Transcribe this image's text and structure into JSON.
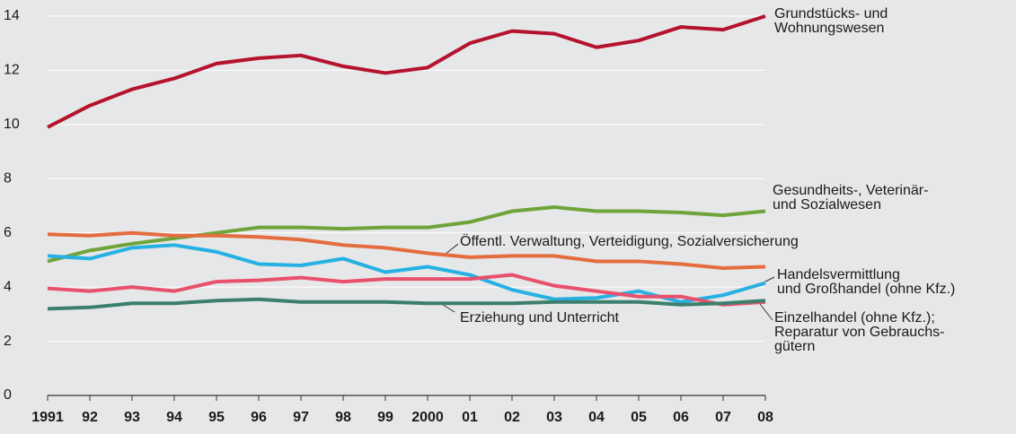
{
  "chart_data": {
    "type": "line",
    "categories": [
      "1991",
      "92",
      "93",
      "94",
      "95",
      "96",
      "97",
      "98",
      "99",
      "2000",
      "01",
      "02",
      "03",
      "04",
      "05",
      "06",
      "07",
      "08"
    ],
    "ylim": [
      0,
      14
    ],
    "yticks": [
      0,
      2,
      4,
      6,
      8,
      10,
      12,
      14
    ],
    "grid": true,
    "series": [
      {
        "name": "Grundstücks- und\nWohnungswesen",
        "color": "#b5122e",
        "values": [
          9.9,
          10.7,
          11.3,
          11.7,
          12.25,
          12.45,
          12.55,
          12.15,
          11.9,
          12.1,
          13.0,
          13.45,
          13.35,
          12.85,
          13.1,
          13.6,
          13.5,
          14.0
        ]
      },
      {
        "name": "Gesundheits-, Veterinär-\nund Sozialwesen",
        "color": "#6fa43a",
        "values": [
          4.95,
          5.35,
          5.6,
          5.8,
          6.0,
          6.2,
          6.2,
          6.15,
          6.2,
          6.2,
          6.4,
          6.8,
          6.95,
          6.8,
          6.8,
          6.75,
          6.65,
          6.8
        ]
      },
      {
        "name": "Öffentl. Verwaltung, Verteidigung, Sozialversicherung",
        "color": "#e46c3e",
        "values": [
          5.95,
          5.9,
          6.0,
          5.9,
          5.9,
          5.85,
          5.75,
          5.55,
          5.45,
          5.25,
          5.1,
          5.15,
          5.15,
          4.95,
          4.95,
          4.85,
          4.7,
          4.75
        ]
      },
      {
        "name": "Handelsvermittlung\nund Großhandel (ohne Kfz.)",
        "color": "#27b1e3",
        "values": [
          5.15,
          5.05,
          5.45,
          5.55,
          5.3,
          4.85,
          4.8,
          5.05,
          4.55,
          4.75,
          4.45,
          3.9,
          3.55,
          3.6,
          3.85,
          3.45,
          3.7,
          4.15
        ]
      },
      {
        "name": "Einzelhandel (ohne Kfz.);\nReparatur von Gebrauchs-\ngütern",
        "color": "#e8516c",
        "values": [
          3.95,
          3.85,
          4.0,
          3.85,
          4.2,
          4.25,
          4.35,
          4.2,
          4.3,
          4.3,
          4.3,
          4.45,
          4.05,
          3.85,
          3.65,
          3.65,
          3.35,
          3.45
        ]
      },
      {
        "name": "Erziehung und Unterricht",
        "color": "#3d7f6c",
        "values": [
          3.2,
          3.25,
          3.4,
          3.4,
          3.5,
          3.55,
          3.45,
          3.45,
          3.45,
          3.4,
          3.4,
          3.4,
          3.45,
          3.45,
          3.45,
          3.35,
          3.4,
          3.5
        ]
      }
    ]
  }
}
